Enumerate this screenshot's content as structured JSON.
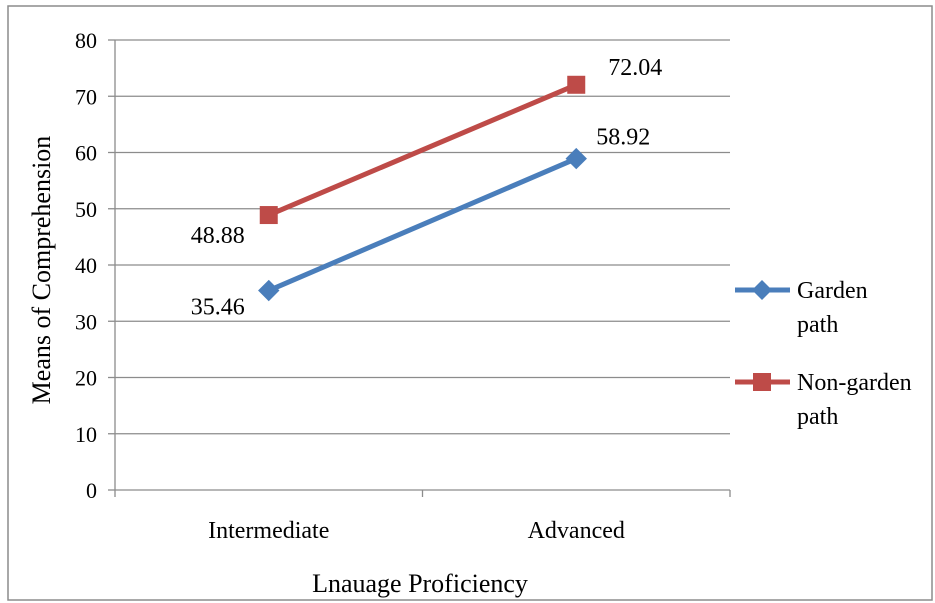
{
  "chart_data": {
    "type": "line",
    "title": "",
    "xlabel": "Lnauage Proficiency",
    "ylabel": "Means of Comprehension",
    "categories": [
      "Intermediate",
      "Advanced"
    ],
    "ylim": [
      0,
      80
    ],
    "yticks": [
      0,
      10,
      20,
      30,
      40,
      50,
      60,
      70,
      80
    ],
    "grid": true,
    "legend_position": "right",
    "series": [
      {
        "name": "Garden path",
        "legend_lines": [
          "Garden",
          "path"
        ],
        "values": [
          35.46,
          58.92
        ],
        "labels": [
          "35.46",
          "58.92"
        ],
        "color": "#4a7ebb",
        "marker": "diamond"
      },
      {
        "name": "Non-garden path",
        "legend_lines": [
          "Non-garden",
          "path"
        ],
        "values": [
          48.88,
          72.04
        ],
        "labels": [
          "48.88",
          "72.04"
        ],
        "color": "#be4b48",
        "marker": "square"
      }
    ]
  }
}
